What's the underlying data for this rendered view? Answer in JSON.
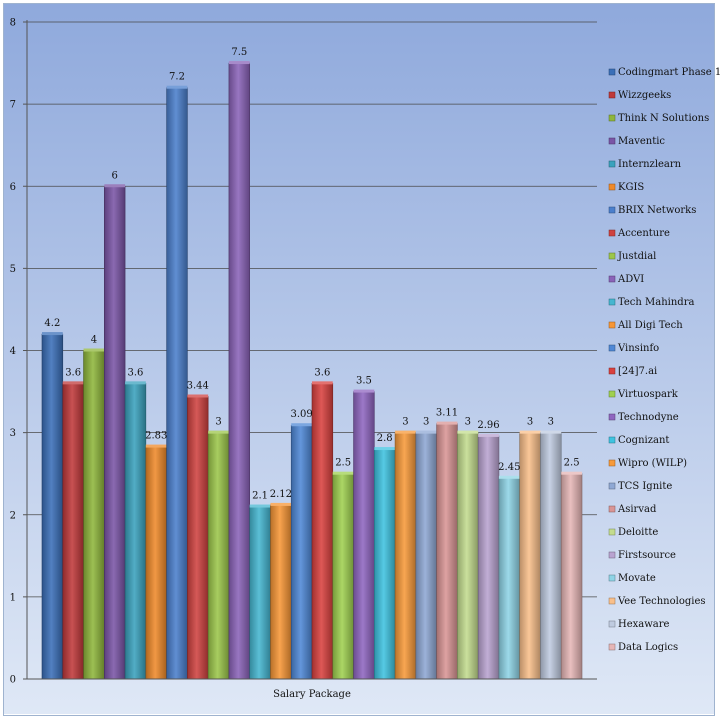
{
  "chart_data": {
    "type": "bar",
    "title": "",
    "xlabel": "Salary Package",
    "ylabel": "",
    "ylim": [
      0,
      8
    ],
    "yticks": [
      0,
      1,
      2,
      3,
      4,
      5,
      6,
      7,
      8
    ],
    "grid": true,
    "legend_position": "right",
    "categories": [
      "Salary Package"
    ],
    "series": [
      {
        "name": "Codingmart Phase 1",
        "values": [
          4.2
        ],
        "label": "4.2",
        "color": "#3a6fb8"
      },
      {
        "name": "Wizzgeeks",
        "values": [
          3.6
        ],
        "label": "3.6",
        "color": "#c0393a"
      },
      {
        "name": "Think N Solutions",
        "values": [
          4
        ],
        "label": "4",
        "color": "#8fb63c"
      },
      {
        "name": "Maventic",
        "values": [
          6
        ],
        "label": "6",
        "color": "#7a55a6"
      },
      {
        "name": "Internzlearn",
        "values": [
          3.6
        ],
        "label": "3.6",
        "color": "#3aa2bd"
      },
      {
        "name": "KGIS",
        "values": [
          2.83
        ],
        "label": "2.83",
        "color": "#ef8a2a"
      },
      {
        "name": "BRIX Networks",
        "values": [
          7.2
        ],
        "label": "7.2",
        "color": "#4a7fcc"
      },
      {
        "name": "Accenture",
        "values": [
          3.44
        ],
        "label": "3.44",
        "color": "#cf4240"
      },
      {
        "name": "Justdial",
        "values": [
          3
        ],
        "label": "3",
        "color": "#9cc64a"
      },
      {
        "name": "ADVI",
        "values": [
          7.5
        ],
        "label": "7.5",
        "color": "#8a63b8"
      },
      {
        "name": "Tech Mahindra",
        "values": [
          2.1
        ],
        "label": "2.1",
        "color": "#45b6d0"
      },
      {
        "name": "All Digi Tech",
        "values": [
          2.12
        ],
        "label": "2.12",
        "color": "#f79636"
      },
      {
        "name": "Vinsinfo",
        "values": [
          3.09
        ],
        "label": "3.09",
        "color": "#4f88d6"
      },
      {
        "name": "[24]7.ai",
        "values": [
          3.6
        ],
        "label": "3.6",
        "color": "#d9413f"
      },
      {
        "name": "Virtuospark",
        "values": [
          2.5
        ],
        "label": "2.5",
        "color": "#9fd050"
      },
      {
        "name": "Technodyne",
        "values": [
          3.5
        ],
        "label": "3.5",
        "color": "#8f66c0"
      },
      {
        "name": "Cognizant",
        "values": [
          2.8
        ],
        "label": "2.8",
        "color": "#3fc3e0"
      },
      {
        "name": "Wipro (WILP)",
        "values": [
          3
        ],
        "label": "3",
        "color": "#f79a3a"
      },
      {
        "name": "TCS Ignite",
        "values": [
          3
        ],
        "label": "3",
        "color": "#8fa8d4"
      },
      {
        "name": "Asirvad",
        "values": [
          3.11
        ],
        "label": "3.11",
        "color": "#d99595"
      },
      {
        "name": "Deloitte",
        "values": [
          3
        ],
        "label": "3",
        "color": "#c3dc8e"
      },
      {
        "name": "Firstsource",
        "values": [
          2.96
        ],
        "label": "2.96",
        "color": "#b9a3d0"
      },
      {
        "name": "Movate",
        "values": [
          2.45
        ],
        "label": "2.45",
        "color": "#8fd4e6"
      },
      {
        "name": "Vee Technologies",
        "values": [
          3
        ],
        "label": "3",
        "color": "#f9bf8a"
      },
      {
        "name": "Hexaware",
        "values": [
          3
        ],
        "label": "3",
        "color": "#bfcbe0"
      },
      {
        "name": "Data Logics",
        "values": [
          2.5
        ],
        "label": "2.5",
        "color": "#e6b6b6"
      }
    ]
  }
}
